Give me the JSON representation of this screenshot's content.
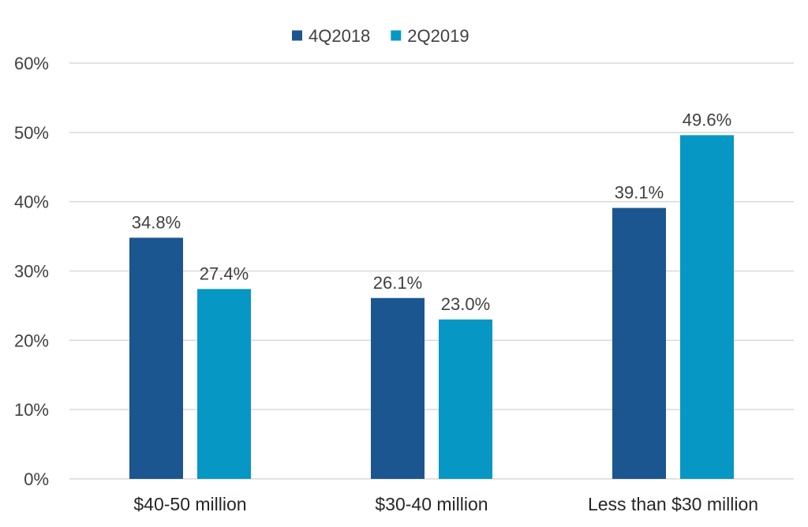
{
  "chart_data": {
    "type": "bar",
    "categories": [
      "$40-50 million",
      "$30-40 million",
      "Less than $30 million"
    ],
    "series": [
      {
        "name": "4Q2018",
        "color": "#1b5690",
        "values": [
          34.8,
          26.1,
          39.1
        ],
        "labels": [
          "34.8%",
          "26.1%",
          "39.1%"
        ]
      },
      {
        "name": "2Q2019",
        "color": "#0797c4",
        "values": [
          27.4,
          23.0,
          49.6
        ],
        "labels": [
          "27.4%",
          "23.0%",
          "49.6%"
        ]
      }
    ],
    "yticks": [
      "0%",
      "10%",
      "20%",
      "30%",
      "40%",
      "50%",
      "60%"
    ],
    "ylim": [
      0,
      60
    ],
    "grid": true,
    "legend_position": "top-center"
  }
}
